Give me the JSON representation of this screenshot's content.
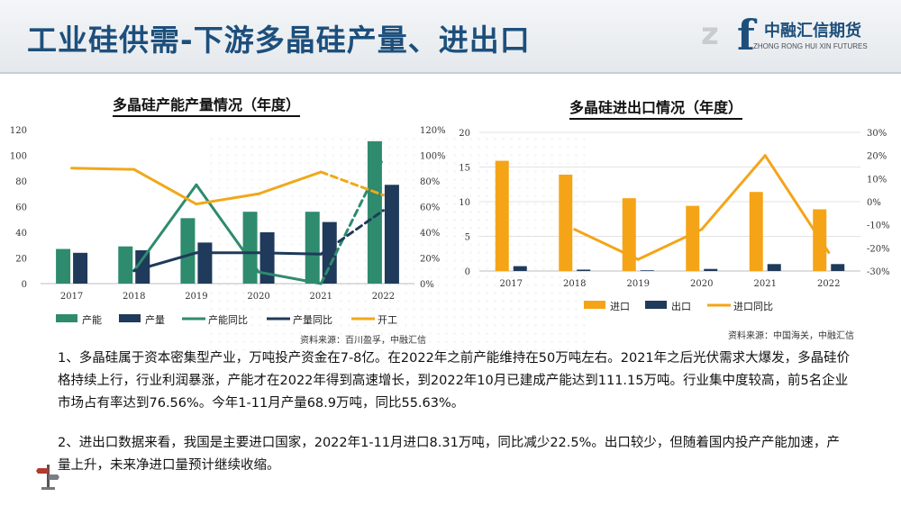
{
  "slide": {
    "title": "工业硅供需-下游多晶硅产量、进出口"
  },
  "logo": {
    "mark_left": "z",
    "mark_right": "f",
    "name_cn": "中融汇信期货",
    "name_en": "ZHONG RONG HUI XIN FUTURES"
  },
  "chart_data": [
    {
      "type": "bar",
      "title": "多晶硅产能产量情况（年度）",
      "categories": [
        "2017",
        "2018",
        "2019",
        "2020",
        "2021",
        "2022"
      ],
      "left_axis": {
        "min": 0,
        "max": 120,
        "ticks": [
          "0",
          "20",
          "40",
          "60",
          "80",
          "100",
          "120"
        ]
      },
      "right_axis": {
        "min": 0,
        "max": 120,
        "ticks": [
          "0%",
          "20%",
          "40%",
          "60%",
          "80%",
          "100%",
          "120%"
        ]
      },
      "bar_series": [
        {
          "name": "产能",
          "color": "#2e8b6e",
          "values": [
            27,
            29,
            51,
            56,
            56,
            111
          ]
        },
        {
          "name": "产量",
          "color": "#1f3a5a",
          "values": [
            24,
            26,
            32,
            40,
            48,
            77
          ]
        }
      ],
      "line_series": [
        {
          "name": "产能同比",
          "color": "#2e8b6e",
          "values": [
            null,
            10,
            77,
            9,
            0,
            98
          ],
          "dashed_last_segment": true
        },
        {
          "name": "产量同比",
          "color": "#1f3a5a",
          "values": [
            null,
            10,
            24,
            24,
            23,
            57
          ],
          "dashed_last_segment": true
        },
        {
          "name": "开工",
          "color": "#f0a81a",
          "values": [
            90,
            89,
            62,
            70,
            87,
            69
          ],
          "dashed_last_segment": true
        }
      ],
      "legend": [
        "产能",
        "产量",
        "产能同比",
        "产量同比",
        "开工"
      ],
      "legend_position": "bottom",
      "source": "资料来源：百川盈孚，中融汇信"
    },
    {
      "type": "bar",
      "title": "多晶硅进出口情况（年度）",
      "categories": [
        "2017",
        "2018",
        "2019",
        "2020",
        "2021",
        "2022"
      ],
      "left_axis": {
        "min": 0,
        "max": 20,
        "ticks": [
          "0",
          "5",
          "10",
          "15",
          "20"
        ]
      },
      "right_axis": {
        "min": -30,
        "max": 30,
        "ticks": [
          "-30%",
          "-20%",
          "-10%",
          "0%",
          "10%",
          "20%",
          "30%"
        ]
      },
      "bar_series": [
        {
          "name": "进口",
          "color": "#f5a417",
          "values": [
            15.9,
            13.9,
            10.5,
            9.4,
            11.4,
            8.9
          ]
        },
        {
          "name": "出口",
          "color": "#1f3a5a",
          "values": [
            0.7,
            0.2,
            0.1,
            0.3,
            1.0,
            1.0
          ]
        }
      ],
      "line_series": [
        {
          "name": "进口同比",
          "color": "#f5a417",
          "values": [
            null,
            -12,
            -25,
            -12,
            20,
            -22
          ]
        }
      ],
      "legend": [
        "进口",
        "出口",
        "进口同比"
      ],
      "legend_position": "bottom",
      "source": "资料来源：中国海关，中融汇信"
    }
  ],
  "text": {
    "para1": "1、多晶硅属于资本密集型产业，万吨投产资金在7-8亿。在2022年之前产能维持在50万吨左右。2021年之后光伏需求大爆发，多晶硅价格持续上行，行业利润暴涨，产能才在2022年得到高速增长，到2022年10月已建成产能达到111.15万吨。行业集中度较高，前5名企业市场占有率达到76.56%。今年1-11月产量68.9万吨，同比55.63%。",
    "para2": "2、进出口数据来看，我国是主要进口国家，2022年1-11月进口8.31万吨，同比减少22.5%。出口较少，但随着国内投产产能加速，产量上升，未来净进口量预计继续收缩。"
  }
}
